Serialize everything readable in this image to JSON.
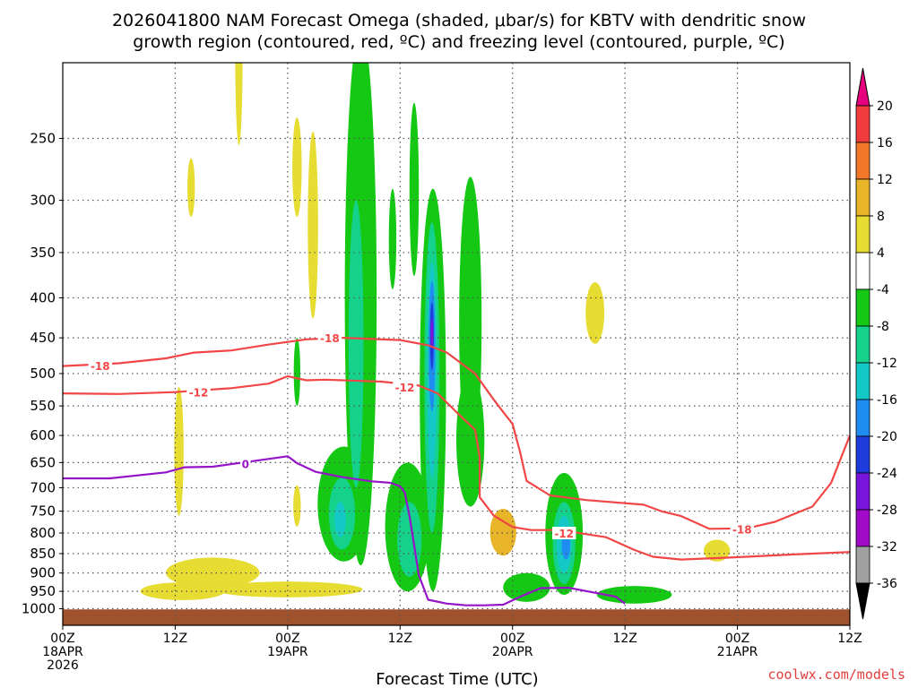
{
  "chart_data": {
    "type": "time-height contour",
    "title_line1": "2026041800 NAM Forecast Omega (shaded, μbar/s) for KBTV with dendritic snow",
    "title_line2": "growth region (contoured, red, ºC) and freezing level (contoured, purple, ºC)",
    "xlabel": "Forecast Time (UTC)",
    "credit": "coolwx.com/models",
    "y_axis": {
      "unit": "hPa",
      "range": [
        1050,
        200
      ],
      "ticks": [
        250,
        300,
        350,
        400,
        450,
        500,
        550,
        600,
        650,
        700,
        750,
        800,
        850,
        900,
        950,
        1000
      ],
      "tick_labels": [
        "250",
        "300",
        "350",
        "400",
        "450",
        "500",
        "550",
        "600",
        "650",
        "700",
        "750",
        "800",
        "850",
        "900",
        "950",
        "1000"
      ]
    },
    "x_axis": {
      "unit": "forecast hour",
      "range": [
        0,
        84
      ],
      "ticks": [
        {
          "hour": 0,
          "lines": [
            "00Z",
            "18APR",
            "2026"
          ]
        },
        {
          "hour": 12,
          "lines": [
            "12Z"
          ]
        },
        {
          "hour": 24,
          "lines": [
            "00Z",
            "19APR"
          ]
        },
        {
          "hour": 36,
          "lines": [
            "12Z"
          ]
        },
        {
          "hour": 48,
          "lines": [
            "00Z",
            "20APR"
          ]
        },
        {
          "hour": 60,
          "lines": [
            "12Z"
          ]
        },
        {
          "hour": 72,
          "lines": [
            "00Z",
            "21APR"
          ]
        },
        {
          "hour": 84,
          "lines": [
            "12Z"
          ]
        }
      ]
    },
    "colorbar": {
      "levels": [
        {
          "label": "20",
          "color": "#e8326e"
        },
        {
          "label": "16",
          "color": "#f03c3c"
        },
        {
          "label": "12",
          "color": "#f07828"
        },
        {
          "label": "8",
          "color": "#e8b428"
        },
        {
          "label": "4",
          "color": "#e6dc32"
        },
        {
          "label": "-4",
          "color": "#ffffff"
        },
        {
          "label": "-8",
          "color": "#14c814"
        },
        {
          "label": "-12",
          "color": "#14d28c"
        },
        {
          "label": "-16",
          "color": "#14c8c8"
        },
        {
          "label": "-20",
          "color": "#1e8cf0"
        },
        {
          "label": "-24",
          "color": "#1e3cdc"
        },
        {
          "label": "-28",
          "color": "#7814dc"
        },
        {
          "label": "-32",
          "color": "#a00ac8"
        },
        {
          "label": "-36",
          "color": "#a0a0a0"
        }
      ],
      "top_triangle_color": "#e6007e",
      "bottom_triangle_color": "#000000"
    },
    "ground": {
      "color": "#a0522d",
      "pressure_top_hPa": 1002
    },
    "contours": [
      {
        "name": "red -18C isotherm",
        "color": "#f04646",
        "label": "-18",
        "label_points": [
          [
            4.0,
            488
          ],
          [
            28.5,
            450
          ],
          [
            72.5,
            790
          ]
        ],
        "points": [
          [
            0,
            489
          ],
          [
            6,
            485
          ],
          [
            11,
            478
          ],
          [
            14,
            470
          ],
          [
            18,
            467
          ],
          [
            22,
            459
          ],
          [
            26,
            452
          ],
          [
            30,
            450
          ],
          [
            36,
            453
          ],
          [
            39,
            460
          ],
          [
            41,
            470
          ],
          [
            44,
            500
          ],
          [
            46,
            540
          ],
          [
            47,
            560
          ],
          [
            48,
            580
          ],
          [
            48.8,
            630
          ],
          [
            49.5,
            686
          ],
          [
            52,
            716
          ],
          [
            56,
            726
          ],
          [
            62,
            736
          ],
          [
            64,
            751
          ],
          [
            66,
            761
          ],
          [
            69,
            790
          ],
          [
            73,
            789
          ],
          [
            76,
            774
          ],
          [
            80,
            740
          ],
          [
            82,
            690
          ],
          [
            84,
            600
          ]
        ]
      },
      {
        "name": "red -12C isotherm",
        "color": "#f04646",
        "label": "-12",
        "label_points": [
          [
            14.5,
            528
          ],
          [
            36.5,
            520
          ],
          [
            53.5,
            800
          ]
        ],
        "points": [
          [
            0,
            530
          ],
          [
            6,
            531
          ],
          [
            12,
            528
          ],
          [
            18,
            522
          ],
          [
            22,
            515
          ],
          [
            24,
            504
          ],
          [
            26,
            510
          ],
          [
            28,
            509
          ],
          [
            34,
            512
          ],
          [
            38,
            518
          ],
          [
            40,
            530
          ],
          [
            42,
            560
          ],
          [
            44,
            590
          ],
          [
            44.5,
            640
          ],
          [
            44.5,
            720
          ],
          [
            46,
            760
          ],
          [
            48,
            786
          ],
          [
            50,
            793
          ],
          [
            53,
            793
          ],
          [
            58,
            810
          ],
          [
            61,
            841
          ],
          [
            63,
            858
          ],
          [
            66,
            865
          ],
          [
            72,
            859
          ],
          [
            78,
            852
          ],
          [
            84,
            846
          ]
        ]
      },
      {
        "name": "purple 0C freezing level",
        "color": "#9614c8",
        "label": "0",
        "label_points": [
          [
            19.5,
            652
          ]
        ],
        "points": [
          [
            0,
            681
          ],
          [
            5,
            681
          ],
          [
            11,
            669
          ],
          [
            13,
            659
          ],
          [
            16,
            658
          ],
          [
            20,
            648
          ],
          [
            24,
            638
          ],
          [
            25,
            651
          ],
          [
            27,
            668
          ],
          [
            30,
            679
          ],
          [
            33,
            687
          ],
          [
            35,
            690
          ],
          [
            36,
            697
          ],
          [
            36.5,
            710
          ],
          [
            37,
            760
          ],
          [
            37.5,
            830
          ],
          [
            38,
            906
          ],
          [
            39,
            974
          ],
          [
            41,
            985
          ],
          [
            43,
            990
          ],
          [
            45,
            990
          ],
          [
            47,
            988
          ],
          [
            49,
            963
          ],
          [
            51,
            941
          ],
          [
            54,
            940
          ],
          [
            57,
            955
          ],
          [
            59,
            965
          ],
          [
            60,
            985
          ]
        ]
      }
    ],
    "shaded_regions": [
      {
        "value_band": "4",
        "color": "#e6dc32",
        "center_hour": 16,
        "center_p": 900,
        "half_width_h": 5,
        "half_height_p": 40
      },
      {
        "value_band": "4",
        "color": "#e6dc32",
        "center_hour": 12.8,
        "center_p": 950,
        "half_width_h": 4.5,
        "half_height_p": 25
      },
      {
        "value_band": "4",
        "color": "#e6dc32",
        "center_hour": 24,
        "center_p": 945,
        "half_width_h": 8,
        "half_height_p": 22
      },
      {
        "value_band": "4",
        "color": "#e6dc32",
        "center_hour": 12.4,
        "center_p": 640,
        "half_width_h": 0.5,
        "half_height_p": 120
      },
      {
        "value_band": "4",
        "color": "#e6dc32",
        "center_hour": 18.8,
        "center_p": 200,
        "half_width_h": 0.4,
        "half_height_p": 55
      },
      {
        "value_band": "4",
        "color": "#e6dc32",
        "center_hour": 13.7,
        "center_p": 290,
        "half_width_h": 0.4,
        "half_height_p": 25
      },
      {
        "value_band": "4",
        "color": "#e6dc32",
        "center_hour": 25.0,
        "center_p": 275,
        "half_width_h": 0.5,
        "half_height_p": 40
      },
      {
        "value_band": "4",
        "color": "#e6dc32",
        "center_hour": 26.7,
        "center_p": 335,
        "half_width_h": 0.55,
        "half_height_p": 90
      },
      {
        "value_band": "4",
        "color": "#e6dc32",
        "center_hour": 25.0,
        "center_p": 740,
        "half_width_h": 0.4,
        "half_height_p": 45
      },
      {
        "value_band": "8",
        "color": "#e8b428",
        "center_hour": 47.0,
        "center_p": 800,
        "half_width_h": 1.4,
        "half_height_p": 55
      },
      {
        "value_band": "4",
        "color": "#e6dc32",
        "center_hour": 56.8,
        "center_p": 420,
        "half_width_h": 1.0,
        "half_height_p": 38
      },
      {
        "value_band": "4",
        "color": "#e6dc32",
        "center_hour": 69.8,
        "center_p": 843,
        "half_width_h": 1.4,
        "half_height_p": 27
      },
      {
        "value_band": "-8",
        "color": "#14c814",
        "center_hour": 31.8,
        "center_p": 530,
        "half_width_h": 1.7,
        "half_height_p": 350
      },
      {
        "value_band": "-8",
        "color": "#14c814",
        "center_hour": 30.0,
        "center_p": 745,
        "half_width_h": 2.8,
        "half_height_p": 125
      },
      {
        "value_band": "-8",
        "color": "#14c814",
        "center_hour": 39.5,
        "center_p": 620,
        "half_width_h": 1.4,
        "half_height_p": 330
      },
      {
        "value_band": "-8",
        "color": "#14c814",
        "center_hour": 36.8,
        "center_p": 800,
        "half_width_h": 2.4,
        "half_height_p": 150
      },
      {
        "value_band": "-8",
        "color": "#14c814",
        "center_hour": 43.5,
        "center_p": 470,
        "half_width_h": 1.2,
        "half_height_p": 190
      },
      {
        "value_band": "-8",
        "color": "#14c814",
        "center_hour": 43.5,
        "center_p": 620,
        "half_width_h": 1.5,
        "half_height_p": 120
      },
      {
        "value_band": "-8",
        "color": "#14c814",
        "center_hour": 53.5,
        "center_p": 815,
        "half_width_h": 2.0,
        "half_height_p": 145
      },
      {
        "value_band": "-8",
        "color": "#14c814",
        "center_hour": 49.5,
        "center_p": 940,
        "half_width_h": 2.5,
        "half_height_p": 40
      },
      {
        "value_band": "-8",
        "color": "#14c814",
        "center_hour": 61.0,
        "center_p": 960,
        "half_width_h": 4.0,
        "half_height_p": 25
      },
      {
        "value_band": "-8",
        "color": "#14c814",
        "center_hour": 35.2,
        "center_p": 340,
        "half_width_h": 0.4,
        "half_height_p": 50
      },
      {
        "value_band": "-8",
        "color": "#14c814",
        "center_hour": 37.5,
        "center_p": 300,
        "half_width_h": 0.5,
        "half_height_p": 75
      },
      {
        "value_band": "-8",
        "color": "#14c814",
        "center_hour": 25.0,
        "center_p": 500,
        "half_width_h": 0.35,
        "half_height_p": 50
      },
      {
        "value_band": "-12",
        "color": "#14d28c",
        "center_hour": 29.8,
        "center_p": 760,
        "half_width_h": 1.4,
        "half_height_p": 80
      },
      {
        "value_band": "-12",
        "color": "#14d28c",
        "center_hour": 31.3,
        "center_p": 500,
        "half_width_h": 0.8,
        "half_height_p": 200
      },
      {
        "value_band": "-12",
        "color": "#14d28c",
        "center_hour": 39.4,
        "center_p": 560,
        "half_width_h": 0.8,
        "half_height_p": 240
      },
      {
        "value_band": "-12",
        "color": "#14d28c",
        "center_hour": 37.0,
        "center_p": 820,
        "half_width_h": 1.3,
        "half_height_p": 90
      },
      {
        "value_band": "-12",
        "color": "#14d28c",
        "center_hour": 53.5,
        "center_p": 830,
        "half_width_h": 1.2,
        "half_height_p": 100
      },
      {
        "value_band": "-16",
        "color": "#14c8c8",
        "center_hour": 39.4,
        "center_p": 520,
        "half_width_h": 0.5,
        "half_height_p": 160
      },
      {
        "value_band": "-16",
        "color": "#14c8c8",
        "center_hour": 53.5,
        "center_p": 830,
        "half_width_h": 0.8,
        "half_height_p": 70
      },
      {
        "value_band": "-16",
        "color": "#14c8c8",
        "center_hour": 29.6,
        "center_p": 770,
        "half_width_h": 0.6,
        "half_height_p": 40
      },
      {
        "value_band": "-20",
        "color": "#1e8cf0",
        "center_hour": 39.4,
        "center_p": 470,
        "half_width_h": 0.35,
        "half_height_p": 90
      },
      {
        "value_band": "-20",
        "color": "#1e8cf0",
        "center_hour": 53.7,
        "center_p": 830,
        "half_width_h": 0.45,
        "half_height_p": 35
      },
      {
        "value_band": "-24",
        "color": "#1e3cdc",
        "center_hour": 39.4,
        "center_p": 450,
        "half_width_h": 0.2,
        "half_height_p": 45
      },
      {
        "value_band": "-28",
        "color": "#7814dc",
        "center_hour": 39.4,
        "center_p": 445,
        "half_width_h": 0.1,
        "half_height_p": 20
      }
    ]
  }
}
